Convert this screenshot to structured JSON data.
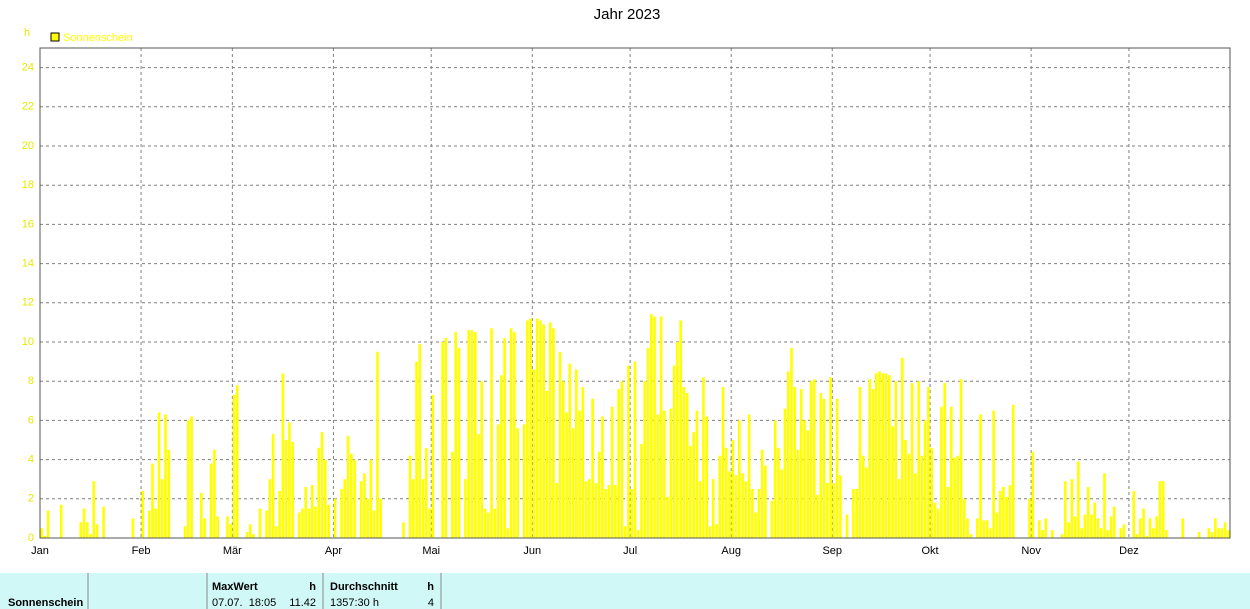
{
  "chart_data": {
    "type": "bar",
    "title": "Jahr 2023",
    "y_unit": "h",
    "series": [
      {
        "name": "Sonnenschein",
        "color": "#ffff00",
        "values": [
          0.5,
          0.1,
          1.4,
          0,
          0,
          0,
          1.7,
          0,
          0,
          0,
          0,
          0,
          0.8,
          1.5,
          0.8,
          0.2,
          2.9,
          0.7,
          0,
          1.6,
          0,
          0,
          0,
          0,
          0,
          0,
          0,
          0,
          1.0,
          0,
          0,
          2.4,
          0,
          1.4,
          3.8,
          1.5,
          6.4,
          3.0,
          6.3,
          4.5,
          0,
          0,
          0,
          0,
          0.6,
          6.0,
          6.2,
          0,
          0,
          2.3,
          1.0,
          0,
          3.8,
          4.5,
          1.1,
          0,
          0,
          1.1,
          0.7,
          7.3,
          7.8,
          0,
          0,
          0.3,
          0.7,
          0.2,
          0,
          1.5,
          0,
          1.4,
          3.0,
          5.3,
          0.6,
          2.4,
          8.4,
          5.0,
          5.9,
          4.9,
          0,
          1.3,
          1.5,
          2.6,
          1.5,
          2.7,
          1.6,
          4.6,
          5.4,
          4.0,
          1.7,
          0,
          2.0,
          0,
          2.5,
          3.0,
          5.2,
          4.3,
          4.0,
          0,
          2.9,
          3.3,
          2.0,
          4.0,
          1.4,
          9.5,
          2.0,
          0,
          0,
          0,
          0,
          0,
          0,
          0.8,
          0,
          4.2,
          3.0,
          9.0,
          9.9,
          3.0,
          4.6,
          1.5,
          7.3,
          0,
          0,
          10.0,
          10.2,
          0,
          4.4,
          10.5,
          9.7,
          0,
          3.0,
          10.6,
          10.6,
          10.5,
          5.3,
          8.0,
          1.5,
          1.3,
          10.7,
          1.5,
          5.8,
          8.3,
          10.2,
          0.5,
          10.7,
          10.5,
          5.6,
          0,
          5.8,
          11.1,
          11.2,
          8.6,
          11.2,
          11.1,
          10.9,
          7.5,
          11.0,
          10.7,
          2.8,
          9.5,
          8.0,
          6.4,
          8.9,
          5.6,
          8.6,
          6.5,
          7.7,
          2.9,
          3.0,
          7.1,
          2.8,
          4.4,
          6.2,
          2.5,
          2.7,
          6.7,
          2.7,
          7.6,
          8.0,
          0.6,
          8.8,
          2.5,
          9.0,
          0.4,
          4.8,
          8.0,
          9.7,
          11.42,
          11.3,
          6.3,
          11.3,
          6.5,
          2.1,
          6.6,
          8.8,
          10.0,
          11.1,
          7.7,
          7.4,
          4.7,
          5.4,
          6.5,
          2.9,
          8.2,
          6.2,
          0.6,
          3.0,
          0.7,
          4.2,
          7.7,
          4.6,
          3.4,
          5.0,
          3.2,
          6.0,
          3.3,
          2.9,
          6.3,
          2.5,
          1.3,
          2.5,
          4.5,
          3.7,
          0,
          1.9,
          6.0,
          4.6,
          3.5,
          6.6,
          8.5,
          9.7,
          7.7,
          4.5,
          7.6,
          6.0,
          5.5,
          8.0,
          8.1,
          2.2,
          7.4,
          7.1,
          2.8,
          8.2,
          2.8,
          7.1,
          3.2,
          0,
          1.2,
          0,
          2.5,
          2.5,
          7.7,
          4.2,
          3.6,
          8.1,
          7.6,
          8.4,
          8.5,
          8.4,
          8.4,
          8.3,
          5.7,
          8.0,
          3.0,
          9.2,
          5.0,
          4.3,
          7.9,
          3.3,
          8.0,
          4.2,
          6.0,
          7.7,
          4.6,
          1.8,
          1.5,
          6.7,
          7.9,
          2.6,
          6.7,
          4.1,
          4.2,
          8.1,
          2.0,
          1.0,
          0.2,
          0,
          1.0,
          6.3,
          0.9,
          0.9,
          0.5,
          6.5,
          1.3,
          2.4,
          2.6,
          2.1,
          2.7,
          6.8,
          0,
          0,
          0,
          0,
          2.0,
          4.4,
          0,
          0.9,
          0.4,
          1.0,
          0,
          0.4,
          0,
          0,
          0.2,
          2.9,
          0.8,
          3.0,
          1.1,
          3.9,
          0.5,
          1.2,
          2.6,
          1.2,
          1.8,
          1.0,
          0.5,
          3.3,
          0.4,
          1.1,
          1.6,
          0,
          0.5,
          0.7,
          0,
          0,
          2.4,
          0.2,
          1.0,
          1.5,
          0.1,
          1.0,
          0.5,
          1.1,
          2.9,
          2.9,
          0.4,
          0,
          0,
          0,
          0,
          1.0,
          0,
          0,
          0,
          0,
          0.3,
          0,
          0,
          0.5,
          0.3,
          1.0,
          0.5,
          0.5,
          0.8,
          0.4
        ]
      }
    ],
    "categories": [
      "Jan",
      null,
      null,
      null,
      null,
      null,
      null,
      null,
      null,
      null,
      null,
      null,
      null,
      null,
      null,
      null,
      null,
      null,
      null,
      null,
      null,
      null,
      null,
      null,
      null,
      null,
      null,
      null,
      null,
      null,
      null,
      "Feb",
      null,
      null,
      null,
      null,
      null,
      null,
      null,
      null,
      null,
      null,
      null,
      null,
      null,
      null,
      null,
      null,
      null,
      null,
      null,
      null,
      null,
      null,
      null,
      null,
      null,
      null,
      null,
      "Mär",
      null,
      null,
      null,
      null,
      null,
      null,
      null,
      null,
      null,
      null,
      null,
      null,
      null,
      null,
      null,
      null,
      null,
      null,
      null,
      null,
      null,
      null,
      null,
      null,
      null,
      null,
      null,
      null,
      null,
      null,
      "Apr",
      null,
      null,
      null,
      null,
      null,
      null,
      null,
      null,
      null,
      null,
      null,
      null,
      null,
      null,
      null,
      null,
      null,
      null,
      null,
      null,
      null,
      null,
      null,
      null,
      null,
      null,
      null,
      null,
      null,
      "Mai",
      null,
      null,
      null,
      null,
      null,
      null,
      null,
      null,
      null,
      null,
      null,
      null,
      null,
      null,
      null,
      null,
      null,
      null,
      null,
      null,
      null,
      null,
      null,
      null,
      null,
      null,
      null,
      null,
      null,
      null,
      "Jun",
      null,
      null,
      null,
      null,
      null,
      null,
      null,
      null,
      null,
      null,
      null,
      null,
      null,
      null,
      null,
      null,
      null,
      null,
      null,
      null,
      null,
      null,
      null,
      null,
      null,
      null,
      null,
      null,
      null,
      "Jul",
      null,
      null,
      null,
      null,
      null,
      null,
      null,
      null,
      null,
      null,
      null,
      null,
      null,
      null,
      null,
      null,
      null,
      null,
      null,
      null,
      null,
      null,
      null,
      null,
      null,
      null,
      null,
      null,
      null,
      null,
      "Aug",
      null,
      null,
      null,
      null,
      null,
      null,
      null,
      null,
      null,
      null,
      null,
      null,
      null,
      null,
      null,
      null,
      null,
      null,
      null,
      null,
      null,
      null,
      null,
      null,
      null,
      null,
      null,
      null,
      null,
      null,
      "Sep",
      null,
      null,
      null,
      null,
      null,
      null,
      null,
      null,
      null,
      null,
      null,
      null,
      null,
      null,
      null,
      null,
      null,
      null,
      null,
      null,
      null,
      null,
      null,
      null,
      null,
      null,
      null,
      null,
      null,
      "Okt",
      null,
      null,
      null,
      null,
      null,
      null,
      null,
      null,
      null,
      null,
      null,
      null,
      null,
      null,
      null,
      null,
      null,
      null,
      null,
      null,
      null,
      null,
      null,
      null,
      null,
      null,
      null,
      null,
      null,
      null,
      "Nov",
      null,
      null,
      null,
      null,
      null,
      null,
      null,
      null,
      null,
      null,
      null,
      null,
      null,
      null,
      null,
      null,
      null,
      null,
      null,
      null,
      null,
      null,
      null,
      null,
      null,
      null,
      null,
      null,
      null,
      "Dez",
      null,
      null,
      null,
      null,
      null,
      null,
      null,
      null,
      null,
      null,
      null,
      null,
      null,
      null,
      null,
      null,
      null,
      null,
      null,
      null,
      null,
      null,
      null,
      null,
      null,
      null,
      null,
      null,
      null,
      null
    ],
    "ylim": [
      0,
      25
    ],
    "yticks": [
      0,
      2,
      4,
      6,
      8,
      10,
      12,
      14,
      16,
      18,
      20,
      22,
      24
    ],
    "grid": true
  },
  "table": {
    "row_label": "Sonnenschein",
    "columns": [
      {
        "header": "MaxWert",
        "unit": "h",
        "date": "07.07.  18:05",
        "value": 11.42
      },
      {
        "header": "Durchschnitt",
        "unit": "h",
        "total": "1357:30 h",
        "value": 4
      }
    ]
  }
}
